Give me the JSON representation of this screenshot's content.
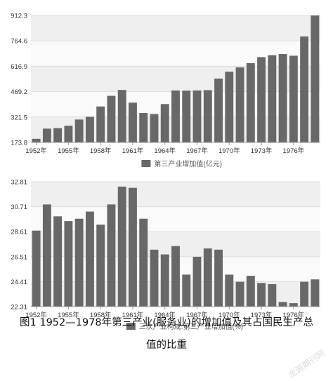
{
  "chart_data": [
    {
      "type": "bar",
      "categories": [
        "1952年",
        "1953年",
        "1954年",
        "1955年",
        "1956年",
        "1957年",
        "1958年",
        "1959年",
        "1960年",
        "1961年",
        "1962年",
        "1963年",
        "1964年",
        "1965年",
        "1966年",
        "1967年",
        "1968年",
        "1969年",
        "1970年",
        "1971年",
        "1972年",
        "1973年",
        "1974年",
        "1975年",
        "1976年",
        "1977年",
        "1978年"
      ],
      "x_tick_labels": [
        "1952年",
        "1955年",
        "1958年",
        "1961年",
        "1964年",
        "1967年",
        "1970年",
        "1973年",
        "1976年"
      ],
      "y_tick_labels": [
        "173.8",
        "321.5",
        "469.2",
        "616.9",
        "764.6",
        "912.3"
      ],
      "values": [
        195,
        254,
        257,
        271,
        307,
        323,
        383,
        445,
        479,
        405,
        345,
        339,
        397,
        476,
        475,
        476,
        478,
        545,
        585,
        610,
        635,
        670,
        681,
        688,
        678,
        790,
        912
      ],
      "ylim": [
        173.8,
        912.3
      ],
      "legend": "第三产业增加值(亿元)",
      "bar_color": "#686868",
      "grid": true
    },
    {
      "type": "bar",
      "categories": [
        "1952年",
        "1953年",
        "1954年",
        "1955年",
        "1956年",
        "1957年",
        "1958年",
        "1959年",
        "1960年",
        "1961年",
        "1962年",
        "1963年",
        "1964年",
        "1965年",
        "1966年",
        "1967年",
        "1968年",
        "1969年",
        "1970年",
        "1971年",
        "1972年",
        "1973年",
        "1974年",
        "1975年",
        "1976年",
        "1977年",
        "1978年"
      ],
      "x_tick_labels": [
        "1952年",
        "1955年",
        "1958年",
        "1961年",
        "1964年",
        "1967年",
        "1970年",
        "1973年",
        "1976年"
      ],
      "y_tick_labels": [
        "22.31",
        "24.41",
        "26.51",
        "28.61",
        "30.71",
        "32.81"
      ],
      "values": [
        28.7,
        30.9,
        29.9,
        29.5,
        29.7,
        30.3,
        29.2,
        30.9,
        32.4,
        32.3,
        29.7,
        27.1,
        26.7,
        27.4,
        25.0,
        26.5,
        27.2,
        27.1,
        25.0,
        24.4,
        24.9,
        24.3,
        24.2,
        22.7,
        22.6,
        24.4,
        24.6
      ],
      "ylim": [
        22.31,
        32.81
      ],
      "legend": "三次产业构成:第三产业增加值(%)",
      "bar_color": "#686868",
      "grid": true
    }
  ],
  "caption": {
    "line1": "图1  1952—1978年第三产业(服务业)的增加值及其占国民生产总",
    "line2": "值的比重"
  },
  "watermark": "龙源期刊网"
}
